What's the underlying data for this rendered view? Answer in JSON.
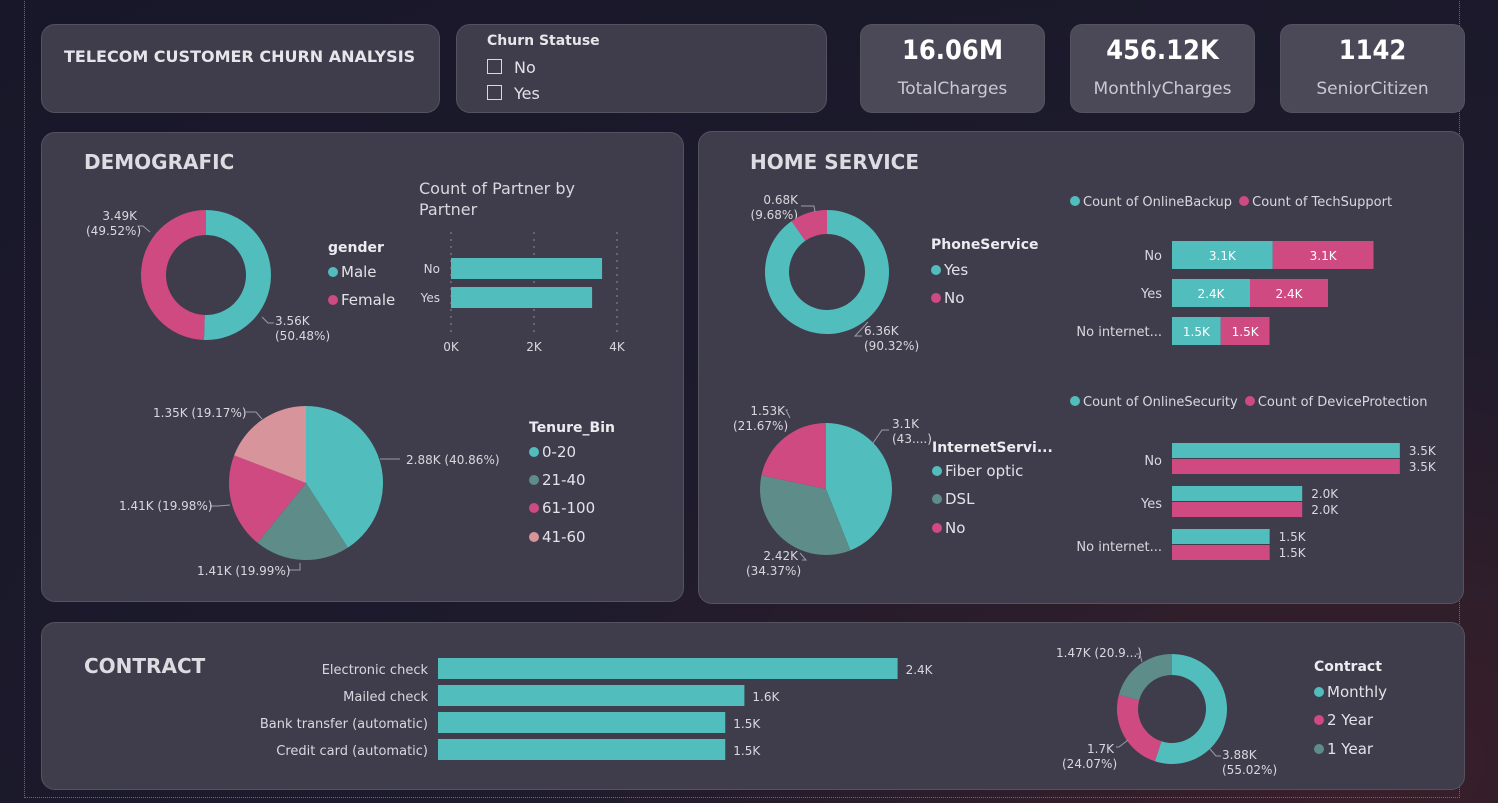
{
  "page": {
    "title": "TELECOM CUSTOMER CHURN ANALYSIS"
  },
  "colors": {
    "teal": "#52bdbd",
    "pink": "#d04a82",
    "slate": "#5e8c88",
    "rose": "#d8949b"
  },
  "slicer": {
    "title": "Churn Statuse",
    "options": [
      "No",
      "Yes"
    ]
  },
  "kpis": [
    {
      "value": "16.06M",
      "label": "TotalCharges"
    },
    {
      "value": "456.12K",
      "label": "MonthlyCharges"
    },
    {
      "value": "1142",
      "label": "SeniorCitizen"
    }
  ],
  "sections": {
    "demographic": "DEMOGRAFIC",
    "home": "HOME SERVICE",
    "contract": "CONTRACT"
  },
  "chart_data": [
    {
      "id": "gender",
      "type": "pie",
      "donut": true,
      "legend_title": "gender",
      "labels": [
        "Male",
        "Female"
      ],
      "values": [
        3560,
        3490
      ],
      "colors": [
        "#52bdbd",
        "#d04a82"
      ],
      "data_labels": [
        [
          "3.56K",
          "(50.48%)"
        ],
        [
          "3.49K",
          "(49.52%)"
        ]
      ]
    },
    {
      "id": "partner",
      "type": "bar",
      "orientation": "horizontal",
      "title": "Count of Partner by Partner",
      "categories": [
        "No",
        "Yes"
      ],
      "values": [
        3640,
        3400
      ],
      "xlim": [
        0,
        4000
      ],
      "ticks": [
        0,
        2000,
        4000
      ],
      "tick_labels": [
        "0K",
        "2K",
        "4K"
      ],
      "grid": true,
      "color": "#52bdbd"
    },
    {
      "id": "tenure",
      "type": "pie",
      "legend_title": "Tenure_Bin",
      "labels": [
        "0-20",
        "21-40",
        "61-100",
        "41-60"
      ],
      "values": [
        2880,
        1410,
        1410,
        1350
      ],
      "colors": [
        "#52bdbd",
        "#5e8c88",
        "#d04a82",
        "#d8949b"
      ],
      "data_labels": [
        "2.88K (40.86%)",
        "1.41K (19.99%)",
        "1.41K (19.98%)",
        "1.35K (19.17%)"
      ]
    },
    {
      "id": "phone",
      "type": "pie",
      "donut": true,
      "legend_title": "PhoneService",
      "labels": [
        "Yes",
        "No"
      ],
      "values": [
        6360,
        680
      ],
      "colors": [
        "#52bdbd",
        "#d04a82"
      ],
      "data_labels": [
        [
          "6.36K",
          "(90.32%)"
        ],
        [
          "0.68K",
          "(9.68%)"
        ]
      ]
    },
    {
      "id": "internet",
      "type": "pie",
      "legend_title": "InternetServi...",
      "labels": [
        "Fiber optic",
        "DSL",
        "No"
      ],
      "values": [
        3100,
        2420,
        1530
      ],
      "colors": [
        "#52bdbd",
        "#5e8c88",
        "#d04a82"
      ],
      "data_labels": [
        [
          "3.1K",
          "(43....)"
        ],
        [
          "2.42K",
          "(34.37%)"
        ],
        [
          "1.53K",
          "(21.67%)"
        ]
      ]
    },
    {
      "id": "backup",
      "type": "bar",
      "orientation": "horizontal",
      "stacked": true,
      "categories": [
        "No",
        "Yes",
        "No internet..."
      ],
      "series": [
        {
          "name": "Count of OnlineBackup",
          "values": [
            3.1,
            2.4,
            1.5
          ],
          "labels": [
            "3.1K",
            "2.4K",
            "1.5K"
          ],
          "color": "#52bdbd"
        },
        {
          "name": "Count of TechSupport",
          "values": [
            3.1,
            2.4,
            1.5
          ],
          "labels": [
            "3.1K",
            "2.4K",
            "1.5K"
          ],
          "color": "#d04a82"
        }
      ]
    },
    {
      "id": "security",
      "type": "bar",
      "orientation": "horizontal",
      "grouped": true,
      "categories": [
        "No",
        "Yes",
        "No internet..."
      ],
      "series": [
        {
          "name": "Count of OnlineSecurity",
          "values": [
            3.5,
            2.0,
            1.5
          ],
          "labels": [
            "3.5K",
            "2.0K",
            "1.5K"
          ],
          "color": "#52bdbd"
        },
        {
          "name": "Count of DeviceProtection",
          "values": [
            3.5,
            2.0,
            1.5
          ],
          "labels": [
            "3.5K",
            "2.0K",
            "1.5K"
          ],
          "color": "#d04a82"
        }
      ]
    },
    {
      "id": "payment",
      "type": "bar",
      "orientation": "horizontal",
      "categories": [
        "Electronic check",
        "Mailed check",
        "Bank transfer (automatic)",
        "Credit card (automatic)"
      ],
      "values": [
        2.4,
        1.6,
        1.5,
        1.5
      ],
      "labels": [
        "2.4K",
        "1.6K",
        "1.5K",
        "1.5K"
      ],
      "color": "#52bdbd"
    },
    {
      "id": "contract",
      "type": "pie",
      "donut": true,
      "legend_title": "Contract",
      "labels": [
        "Monthly",
        "2 Year",
        "1 Year"
      ],
      "values": [
        3880,
        1700,
        1470
      ],
      "colors": [
        "#52bdbd",
        "#d04a82",
        "#5e8c88"
      ],
      "data_labels": [
        [
          "3.88K",
          "(55.02%)"
        ],
        [
          "1.7K",
          "(24.07%)"
        ],
        [
          "1.47K (20.9...)"
        ]
      ]
    }
  ]
}
